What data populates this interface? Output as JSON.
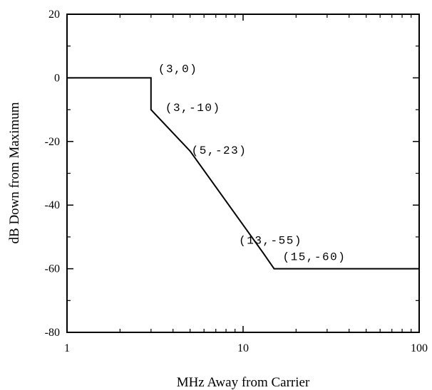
{
  "chart_data": {
    "type": "line",
    "title": "",
    "xlabel": "MHz Away from Carrier",
    "ylabel": "dB Down from Maximum",
    "xscale": "log",
    "xlim": [
      1,
      100
    ],
    "ylim": [
      -80,
      20
    ],
    "grid": false,
    "x_ticks": [
      1,
      10,
      100
    ],
    "x_tick_labels": [
      "1",
      "10",
      "100"
    ],
    "y_ticks": [
      -80,
      -60,
      -40,
      -20,
      0,
      20
    ],
    "y_tick_labels": [
      "-80",
      "-60",
      "-40",
      "-20",
      "0",
      "20"
    ],
    "series": [
      {
        "x": [
          1,
          3,
          3,
          5,
          13,
          15,
          100
        ],
        "y": [
          0,
          0,
          -10,
          -23,
          -55,
          -60,
          -60
        ]
      }
    ],
    "annotations": [
      {
        "text": "(3,0)",
        "x": 3,
        "y": 0
      },
      {
        "text": "(3,-10)",
        "x": 3,
        "y": -10
      },
      {
        "text": "(5,-23)",
        "x": 5,
        "y": -23
      },
      {
        "text": "(13,-55)",
        "x": 13,
        "y": -55
      },
      {
        "text": "(15,-60)",
        "x": 15,
        "y": -60
      }
    ]
  }
}
